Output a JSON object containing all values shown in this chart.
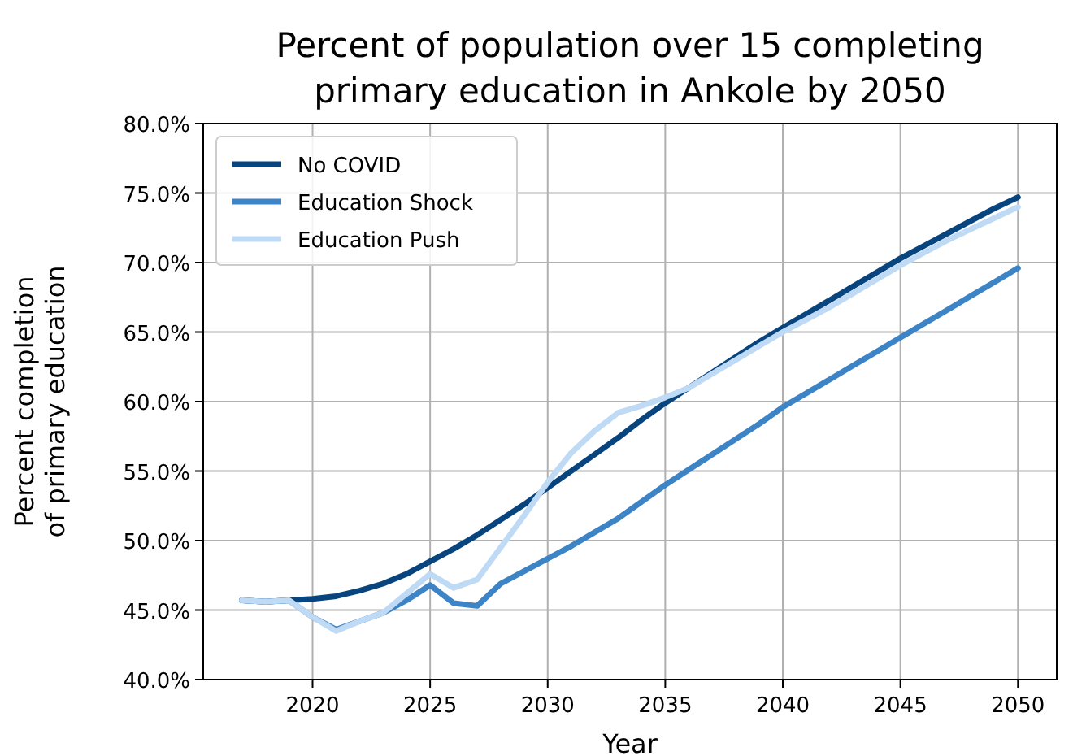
{
  "chart_data": {
    "type": "line",
    "title": "Percent of population over 15 completing primary education in Ankole by 2050",
    "xlabel": "Year",
    "ylabel": "Percent completion of primary education",
    "x": [
      2017,
      2018,
      2019,
      2020,
      2021,
      2022,
      2023,
      2024,
      2025,
      2026,
      2027,
      2028,
      2029,
      2030,
      2031,
      2032,
      2033,
      2034,
      2035,
      2036,
      2037,
      2038,
      2039,
      2040,
      2041,
      2042,
      2043,
      2044,
      2045,
      2046,
      2047,
      2048,
      2049,
      2050
    ],
    "series": [
      {
        "name": "No COVID",
        "color": "#08457e",
        "values": [
          45.7,
          45.6,
          45.7,
          45.8,
          46.0,
          46.4,
          46.9,
          47.6,
          48.5,
          49.4,
          50.4,
          51.5,
          52.6,
          53.8,
          55.0,
          56.2,
          57.4,
          58.7,
          59.9,
          61.0,
          62.1,
          63.2,
          64.3,
          65.3,
          66.3,
          67.3,
          68.3,
          69.3,
          70.3,
          71.2,
          72.1,
          73.0,
          73.9,
          74.7
        ]
      },
      {
        "name": "Education Shock",
        "color": "#3d84c6",
        "values": [
          45.7,
          45.6,
          45.7,
          44.5,
          43.6,
          44.2,
          44.8,
          45.7,
          46.8,
          45.5,
          45.3,
          46.9,
          47.8,
          48.7,
          49.6,
          50.6,
          51.6,
          52.8,
          54.0,
          55.1,
          56.2,
          57.3,
          58.4,
          59.6,
          60.6,
          61.6,
          62.6,
          63.6,
          64.6,
          65.6,
          66.6,
          67.6,
          68.6,
          69.6
        ]
      },
      {
        "name": "Education Push",
        "color": "#bfdaf5",
        "values": [
          45.7,
          45.6,
          45.7,
          44.5,
          43.5,
          44.2,
          44.8,
          46.2,
          47.6,
          46.6,
          47.2,
          49.5,
          51.8,
          54.2,
          56.3,
          57.9,
          59.2,
          59.7,
          60.3,
          61.0,
          62.0,
          63.0,
          64.0,
          65.0,
          65.9,
          66.8,
          67.8,
          68.8,
          69.8,
          70.7,
          71.6,
          72.4,
          73.2,
          74.0
        ]
      }
    ],
    "xlim": [
      2015.35,
      2051.65
    ],
    "xticks": [
      2020,
      2025,
      2030,
      2035,
      2040,
      2045,
      2050
    ],
    "ylim": [
      40,
      80
    ],
    "yticks": [
      {
        "value": 40,
        "label": "40.0%"
      },
      {
        "value": 45,
        "label": "45.0%"
      },
      {
        "value": 50,
        "label": "50.0%"
      },
      {
        "value": 55,
        "label": "55.0%"
      },
      {
        "value": 60,
        "label": "60.0%"
      },
      {
        "value": 65,
        "label": "65.0%"
      },
      {
        "value": 70,
        "label": "70.0%"
      },
      {
        "value": 75,
        "label": "75.0%"
      },
      {
        "value": 80,
        "label": "80.0%"
      }
    ],
    "grid": true,
    "legend": "top left"
  }
}
